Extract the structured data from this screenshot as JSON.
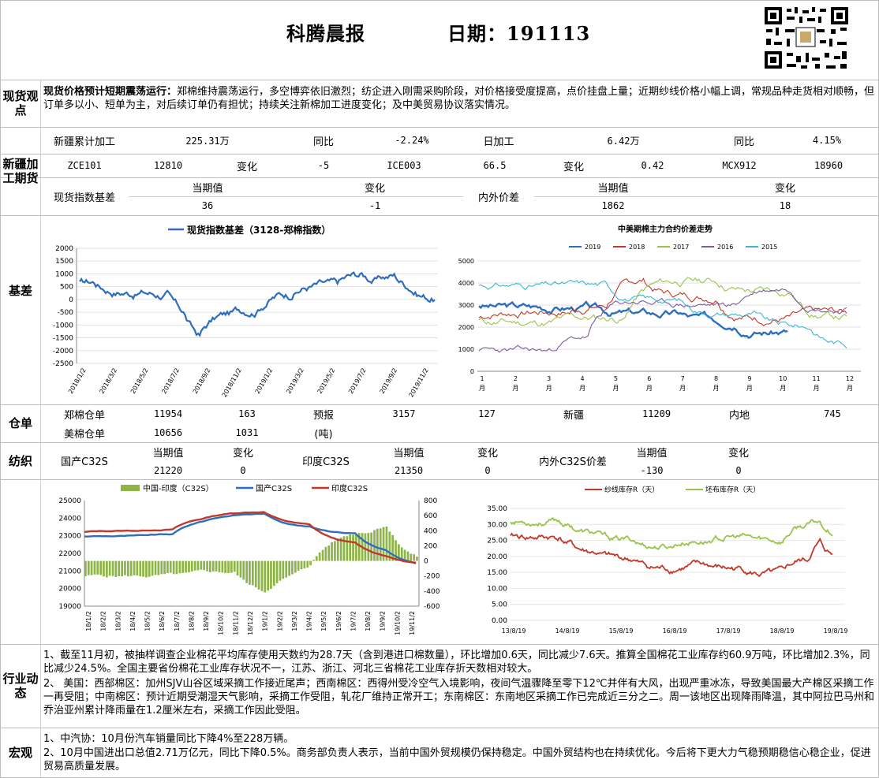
{
  "header": {
    "title": "科腾晨报",
    "date_label": "日期：191113"
  },
  "spot": {
    "label": "现货观点",
    "bold": "现货价格预计短期震荡运行：",
    "text": "郑棉维持震荡运行，多空博弈依旧激烈；纺企进入刚需采购阶段，对价格接受度提高，点价挂盘上量；近期纱线价格小幅上调，常规品种走货相对顺畅，但订单多以小、短单为主，对后续订单仍有担忧；持续关注新棉加工进度变化；及中美贸易协议落实情况。"
  },
  "xinjiang": {
    "label": "新疆加工期货",
    "row1": [
      "新疆累计加工",
      "225.31万",
      "同比",
      "-2.24%",
      "日加工",
      "6.42万",
      "同比",
      "4.15%"
    ],
    "row2": [
      "ZCE101",
      "12810",
      "变化",
      "-5",
      "ICE003",
      "66.5",
      "变化",
      "0.42",
      "MCX912",
      "18960"
    ]
  },
  "spot_basis": {
    "name": "现货指数基差",
    "h1": "当期值",
    "h2": "变化",
    "v1": "36",
    "v2": "-1",
    "name2": "内外价差",
    "h3": "当期值",
    "h4": "变化",
    "v3": "1862",
    "v4": "18"
  },
  "basis": {
    "label": "基差",
    "chart1": {
      "legend": "现货指数基差（3128-郑棉指数）",
      "yticks": [
        "2000",
        "1500",
        "1000",
        "500",
        "0",
        "-500",
        "-1000",
        "-1500",
        "-2000",
        "-2500"
      ],
      "xticks": [
        "2018/1/2",
        "2018/3/2",
        "2018/5/2",
        "2018/7/2",
        "2018/9/2",
        "2018/11/2",
        "2019/1/2",
        "2019/3/2",
        "2019/5/2",
        "2019/7/2",
        "2019/9/2",
        "2019/11/2"
      ]
    },
    "chart2": {
      "title": "中美期棉主力合约价差走势",
      "legend": [
        "2019",
        "2018",
        "2017",
        "2016",
        "2015"
      ],
      "colors": [
        "#2e6ebd",
        "#c0392b",
        "#9bc34a",
        "#7d5ba6",
        "#3fb6cc"
      ],
      "yticks": [
        "5000",
        "4000",
        "3000",
        "2000",
        "1000",
        "0"
      ],
      "xticks": [
        "1",
        "2",
        "3",
        "4",
        "5",
        "6",
        "7",
        "8",
        "9",
        "10",
        "11",
        "12"
      ],
      "month": "月"
    }
  },
  "warehouse": {
    "label": "仓单",
    "row1": [
      "郑棉仓单",
      "11954",
      "163",
      "预报",
      "3157",
      "127",
      "新疆",
      "11209",
      "内地",
      "745"
    ],
    "row2": [
      "美棉仓单",
      "10656",
      "1031",
      "(吨)"
    ]
  },
  "textile": {
    "label": "纺织",
    "h1": "当期值",
    "h2": "变化",
    "items": [
      {
        "name": "国产C32S",
        "v": "21220",
        "c": "0"
      },
      {
        "name": "印度C32S",
        "v": "21350",
        "c": "0"
      },
      {
        "name": "内外C32S价差",
        "v": "-130",
        "c": "0"
      }
    ],
    "chart3": {
      "legend": [
        "中国-印度（C32S）",
        "国产C32S",
        "印度C32S"
      ],
      "yticks": [
        "25000",
        "24000",
        "23000",
        "22000",
        "21000",
        "20000",
        "19000"
      ],
      "y2ticks": [
        "800",
        "600",
        "400",
        "200",
        "0",
        "-200",
        "-400",
        "-600"
      ],
      "xticks": [
        "18/1/2",
        "18/2/2",
        "18/3/2",
        "18/4/2",
        "18/5/2",
        "18/6/2",
        "18/7/2",
        "18/8/2",
        "18/9/2",
        "18/10/2",
        "18/11/2",
        "18/12/2",
        "19/1/2",
        "19/2/2",
        "19/3/2",
        "19/4/2",
        "19/5/2",
        "19/6/2",
        "19/7/2",
        "19/8/2",
        "19/9/2",
        "19/10/2",
        "19/11/2"
      ]
    },
    "chart4": {
      "legend": [
        "纱线库存R（天）",
        "坯布库存R（天）"
      ],
      "yticks": [
        "35.00",
        "30.00",
        "25.00",
        "20.00",
        "15.00",
        "10.00",
        "5.00",
        "0.00"
      ],
      "xticks": [
        "13/8/19",
        "14/8/19",
        "15/8/19",
        "16/8/19",
        "17/8/19",
        "18/8/19",
        "19/8/19"
      ]
    }
  },
  "industry": {
    "label": "行业动态",
    "p1": "1、截至11月初，被抽样调查企业棉花平均库存使用天数约为28.7天（含到港进口棉数量），环比增加0.6天，同比减少7.6天。推算全国棉花工业库存约60.9万吨，环比增加2.3%，同比减少24.5%。全国主要省份棉花工业库存状况不一，江苏、浙江、河北三省棉花工业库存折天数相对较大。",
    "p2": "2、 美国：西部棉区：加州SJV山谷区域采摘工作接近尾声；西南棉区：西得州受冷空气入境影响，夜间气温骤降至零下12℃并伴有大风，出现严重冰冻，导致美国最大产棉区采摘工作一再受阻；中南棉区：预计近期受潮湿天气影响，采摘工作受阻，轧花厂维持正常开工；东南棉区：东南地区采摘工作已完成近三分之二。周一该地区出现降雨降温，其中阿拉巴马州和乔治亚州累计降雨量在1.2厘米左右，采摘工作因此受阻。"
  },
  "macro": {
    "label": "宏观",
    "p1": "1、中汽协：10月份汽车销量同比下降4%至228万辆。",
    "p2": "2、10月中国进出口总值2.71万亿元，同比下降0.5%。商务部负责人表示，当前中国外贸规模仍保持稳定。中国外贸结构也在持续优化。今后将下更大力气稳预期稳信心稳企业，促进贸易高质量发展。"
  }
}
